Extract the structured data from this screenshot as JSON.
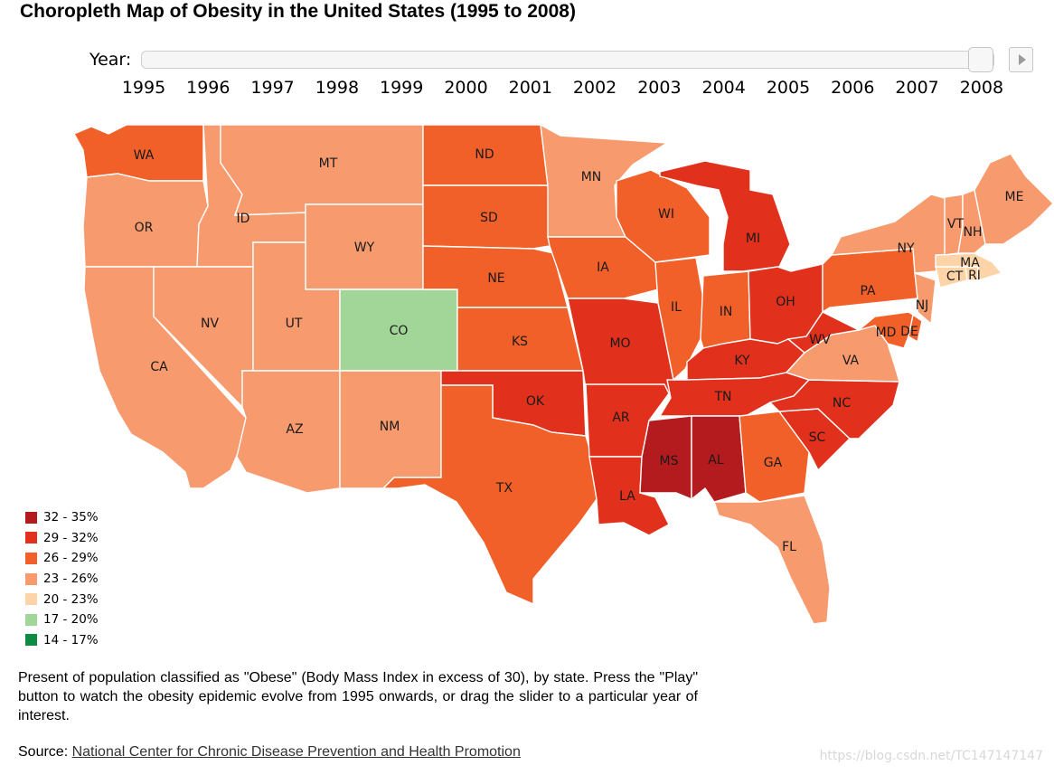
{
  "title": "Choropleth Map of Obesity in the United States (1995 to 2008)",
  "controls": {
    "year_label": "Year:",
    "selected_year": "2008",
    "years": [
      "1995",
      "1996",
      "1997",
      "1998",
      "1999",
      "2000",
      "2001",
      "2002",
      "2003",
      "2004",
      "2005",
      "2006",
      "2007",
      "2008"
    ],
    "play_icon": "play-icon"
  },
  "legend": {
    "items": [
      {
        "label": "32 - 35%",
        "color": "#b31b1e"
      },
      {
        "label": "29 - 32%",
        "color": "#e1301c"
      },
      {
        "label": "26 - 29%",
        "color": "#f2602a"
      },
      {
        "label": "23 - 26%",
        "color": "#f79a6e"
      },
      {
        "label": "20 - 23%",
        "color": "#fdd4a8"
      },
      {
        "label": "17 - 20%",
        "color": "#a2d699"
      },
      {
        "label": "14 - 17%",
        "color": "#0e8b43"
      }
    ]
  },
  "states": [
    {
      "code": "WA",
      "bin": 2
    },
    {
      "code": "OR",
      "bin": 3
    },
    {
      "code": "CA",
      "bin": 3
    },
    {
      "code": "ID",
      "bin": 3
    },
    {
      "code": "NV",
      "bin": 3
    },
    {
      "code": "MT",
      "bin": 3
    },
    {
      "code": "WY",
      "bin": 3
    },
    {
      "code": "UT",
      "bin": 3
    },
    {
      "code": "AZ",
      "bin": 3
    },
    {
      "code": "CO",
      "bin": 5
    },
    {
      "code": "NM",
      "bin": 3
    },
    {
      "code": "ND",
      "bin": 2
    },
    {
      "code": "SD",
      "bin": 2
    },
    {
      "code": "NE",
      "bin": 2
    },
    {
      "code": "KS",
      "bin": 2
    },
    {
      "code": "OK",
      "bin": 1
    },
    {
      "code": "TX",
      "bin": 2
    },
    {
      "code": "MN",
      "bin": 3
    },
    {
      "code": "IA",
      "bin": 2
    },
    {
      "code": "MO",
      "bin": 1
    },
    {
      "code": "AR",
      "bin": 1
    },
    {
      "code": "LA",
      "bin": 1
    },
    {
      "code": "WI",
      "bin": 2
    },
    {
      "code": "IL",
      "bin": 2
    },
    {
      "code": "MI",
      "bin": 1
    },
    {
      "code": "IN",
      "bin": 2
    },
    {
      "code": "OH",
      "bin": 1
    },
    {
      "code": "KY",
      "bin": 1
    },
    {
      "code": "TN",
      "bin": 1
    },
    {
      "code": "MS",
      "bin": 0
    },
    {
      "code": "AL",
      "bin": 0
    },
    {
      "code": "GA",
      "bin": 2
    },
    {
      "code": "FL",
      "bin": 3
    },
    {
      "code": "SC",
      "bin": 1
    },
    {
      "code": "NC",
      "bin": 1
    },
    {
      "code": "VA",
      "bin": 3
    },
    {
      "code": "WV",
      "bin": 1
    },
    {
      "code": "PA",
      "bin": 2
    },
    {
      "code": "NY",
      "bin": 3
    },
    {
      "code": "NJ",
      "bin": 3
    },
    {
      "code": "DE",
      "bin": 2
    },
    {
      "code": "MD",
      "bin": 2
    },
    {
      "code": "CT",
      "bin": 4
    },
    {
      "code": "RI",
      "bin": 4
    },
    {
      "code": "MA",
      "bin": 4
    },
    {
      "code": "VT",
      "bin": 3
    },
    {
      "code": "NH",
      "bin": 3
    },
    {
      "code": "ME",
      "bin": 3
    }
  ],
  "description": "Present of population classified as \"Obese\" (Body Mass Index in excess of 30), by state. Press the \"Play\" button to watch the obesity epidemic evolve from 1995 onwards, or drag the slider to a particular year of interest.",
  "source": {
    "prefix": "Source: ",
    "link_text": "National Center for Chronic Disease Prevention and Health Promotion"
  },
  "watermark": "https://blog.csdn.net/TC147147147"
}
